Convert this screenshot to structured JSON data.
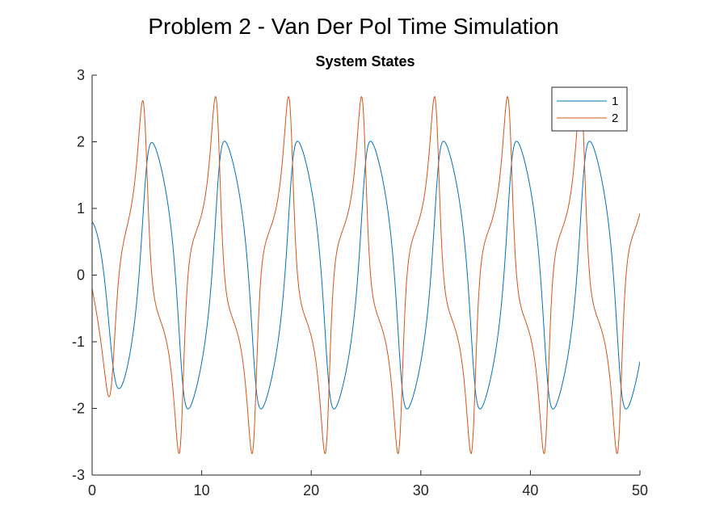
{
  "figure": {
    "title": "Problem 2 - Van Der Pol Time Simulation"
  },
  "chart_data": {
    "type": "line",
    "title": "System States",
    "xlabel": "",
    "ylabel": "",
    "xlim": [
      0,
      50
    ],
    "ylim": [
      -3,
      3
    ],
    "xticks": [
      0,
      10,
      20,
      30,
      40,
      50
    ],
    "yticks": [
      -3,
      -2,
      -1,
      0,
      1,
      2,
      3
    ],
    "grid": false,
    "legend_position": "top-right",
    "model": {
      "equation": "van-der-pol",
      "mu": 1,
      "t_start": 0,
      "t_end": 50,
      "x1_0": 0.8,
      "x2_0": -0.2
    },
    "series": [
      {
        "name": "1",
        "color": "#0072BD"
      },
      {
        "name": "2",
        "color": "#D95319"
      }
    ]
  }
}
